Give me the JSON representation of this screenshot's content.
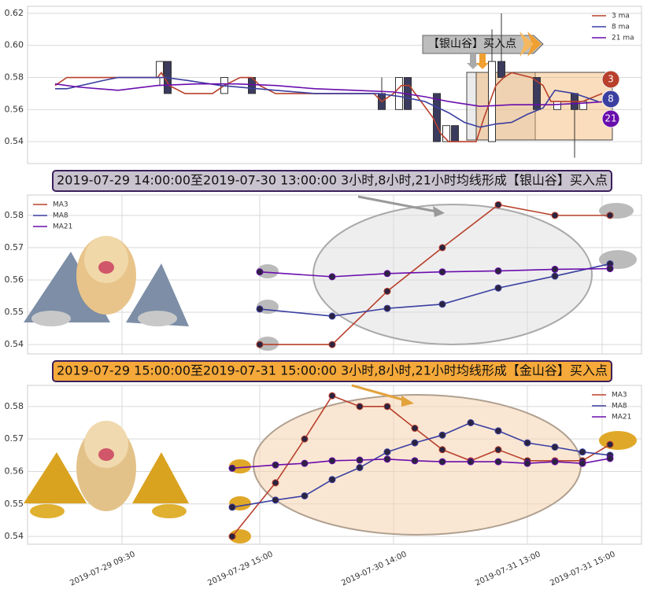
{
  "chart_data": [
    {
      "type": "candlestick",
      "annotation": "【银山谷】买入点",
      "legend": "upper right",
      "grid": true,
      "xlim": [
        0,
        780
      ],
      "ylim": [
        0.5263,
        0.6244
      ],
      "yticks": [
        0.54,
        0.56,
        0.58,
        {
          "value": 0.6,
          "label": "0.60"
        },
        0.62
      ],
      "candles": {
        "x": [
          168,
          178,
          250,
          285,
          450,
          472,
          483,
          520,
          532,
          543,
          590,
          602,
          647,
          673,
          695,
          706
        ],
        "open": [
          0.58,
          0.59,
          0.57,
          0.58,
          0.57,
          0.56,
          0.58,
          0.57,
          0.54,
          0.55,
          0.54,
          0.59,
          0.58,
          0.56,
          0.57,
          0.56
        ],
        "close": [
          0.59,
          0.57,
          0.58,
          0.57,
          0.56,
          0.58,
          0.56,
          0.54,
          0.55,
          0.54,
          0.59,
          0.58,
          0.56,
          0.565,
          0.56,
          0.565
        ],
        "high": [
          0.59,
          0.59,
          0.58,
          0.58,
          0.58,
          0.58,
          0.58,
          0.57,
          0.55,
          0.55,
          0.61,
          0.62,
          0.58,
          0.565,
          0.57,
          0.565
        ],
        "low": [
          0.575,
          0.57,
          0.57,
          0.57,
          0.56,
          0.56,
          0.56,
          0.54,
          0.54,
          0.54,
          0.54,
          0.58,
          0.56,
          0.56,
          0.53,
          0.56
        ]
      },
      "badges": [
        "3",
        "8",
        "21"
      ],
      "series": [
        {
          "name": "3 ma",
          "color": "#b8402c",
          "x": [
            35,
            50,
            115,
            165,
            170,
            180,
            200,
            235,
            250,
            270,
            285,
            295,
            315,
            440,
            450,
            465,
            475,
            485,
            500,
            515,
            525,
            535,
            570,
            580,
            595,
            605,
            615,
            640,
            655,
            665,
            685,
            705,
            730
          ],
          "values": [
            0.575,
            0.58,
            0.58,
            0.58,
            0.583,
            0.575,
            0.57,
            0.57,
            0.575,
            0.58,
            0.58,
            0.575,
            0.57,
            0.57,
            0.565,
            0.57,
            0.575,
            0.575,
            0.565,
            0.555,
            0.545,
            0.54,
            0.54,
            0.555,
            0.575,
            0.58,
            0.583,
            0.58,
            0.575,
            0.565,
            0.565,
            0.565,
            0.57
          ]
        },
        {
          "name": "8 ma",
          "color": "#3a3fa0",
          "x": [
            35,
            50,
            95,
            115,
            175,
            205,
            245,
            315,
            365,
            445,
            475,
            505,
            535,
            555,
            575,
            595,
            615,
            635,
            655,
            670,
            695,
            725
          ],
          "values": [
            0.573,
            0.573,
            0.578,
            0.58,
            0.58,
            0.578,
            0.575,
            0.572,
            0.57,
            0.57,
            0.568,
            0.565,
            0.558,
            0.552,
            0.549,
            0.551,
            0.552,
            0.557,
            0.561,
            0.572,
            0.57,
            0.565
          ]
        },
        {
          "name": "21 ma",
          "color": "#6a0dad",
          "x": [
            35,
            65,
            115,
            165,
            215,
            265,
            315,
            365,
            415,
            465,
            505,
            535,
            575,
            615,
            665,
            705,
            735
          ],
          "values": [
            0.576,
            0.574,
            0.572,
            0.575,
            0.576,
            0.576,
            0.575,
            0.573,
            0.572,
            0.571,
            0.568,
            0.565,
            0.562,
            0.563,
            0.563,
            0.564,
            0.565
          ]
        }
      ]
    },
    {
      "type": "line",
      "title": "2019-07-29 14:00:00至2019-07-30 13:00:00 3小时,8小时,21小时均线形成【银山谷】买入点",
      "legend": "upper left",
      "grid": true,
      "xlim": [
        0,
        780
      ],
      "ylim": [
        0.5371,
        0.5863
      ],
      "yticks": [
        0.54,
        0.55,
        0.56,
        0.57,
        0.58
      ],
      "series": [
        {
          "name": "MA3",
          "color": "#b8402c",
          "x": [
            295,
            387,
            457,
            527,
            598,
            670,
            740
          ],
          "values": [
            0.54,
            0.54,
            0.5565,
            0.57,
            0.5833,
            0.58,
            0.58
          ]
        },
        {
          "name": "MA8",
          "color": "#3a3fa0",
          "x": [
            295,
            387,
            457,
            527,
            598,
            670,
            740
          ],
          "values": [
            0.551,
            0.5488,
            0.5512,
            0.5525,
            0.5575,
            0.5612,
            0.565
          ]
        },
        {
          "name": "MA21",
          "color": "#6a0dad",
          "x": [
            295,
            387,
            457,
            527,
            598,
            670,
            740
          ],
          "values": [
            0.5625,
            0.561,
            0.562,
            0.5625,
            0.5628,
            0.5633,
            0.5635
          ]
        }
      ]
    },
    {
      "type": "line",
      "title": "2019-07-29 15:00:00至2019-07-31 15:00:00 3小时,8小时,21小时均线形成【金山谷】买入点",
      "legend": "upper right",
      "grid": true,
      "xlim": [
        0,
        780
      ],
      "ylim": [
        0.5376,
        0.5865
      ],
      "yticks": [
        0.54,
        0.55,
        0.56,
        0.57,
        0.58
      ],
      "xticks": [
        {
          "value": 120,
          "label": "2019-07-29 09:30"
        },
        {
          "value": 295,
          "label": "2019-07-29 15:00"
        },
        {
          "value": 465,
          "label": "2019-07-30 14:00"
        },
        {
          "value": 635,
          "label": "2019-07-31 13:00"
        },
        {
          "value": 730,
          "label": "2019-07-31 15:00"
        }
      ],
      "series": [
        {
          "name": "MA3",
          "color": "#b8402c",
          "x": [
            260,
            315,
            352,
            387,
            422,
            457,
            492,
            527,
            563,
            598,
            635,
            670,
            705,
            740
          ],
          "values": [
            0.54,
            0.5565,
            0.57,
            0.5833,
            0.58,
            0.58,
            0.5733,
            0.5667,
            0.5633,
            0.5667,
            0.5633,
            0.5633,
            0.5633,
            0.5683
          ]
        },
        {
          "name": "MA8",
          "color": "#3a3fa0",
          "x": [
            260,
            315,
            352,
            387,
            422,
            457,
            492,
            527,
            563,
            598,
            635,
            670,
            705,
            740
          ],
          "values": [
            0.549,
            0.5512,
            0.5525,
            0.5575,
            0.5612,
            0.566,
            0.5688,
            0.5712,
            0.575,
            0.5725,
            0.5688,
            0.5675,
            0.566,
            0.565
          ]
        },
        {
          "name": "MA21",
          "color": "#6a0dad",
          "x": [
            260,
            315,
            352,
            387,
            422,
            457,
            492,
            527,
            563,
            598,
            635,
            670,
            705,
            740
          ],
          "values": [
            0.561,
            0.562,
            0.5625,
            0.5633,
            0.5635,
            0.5638,
            0.5633,
            0.563,
            0.563,
            0.563,
            0.5625,
            0.563,
            0.5625,
            0.564
          ]
        }
      ]
    }
  ]
}
